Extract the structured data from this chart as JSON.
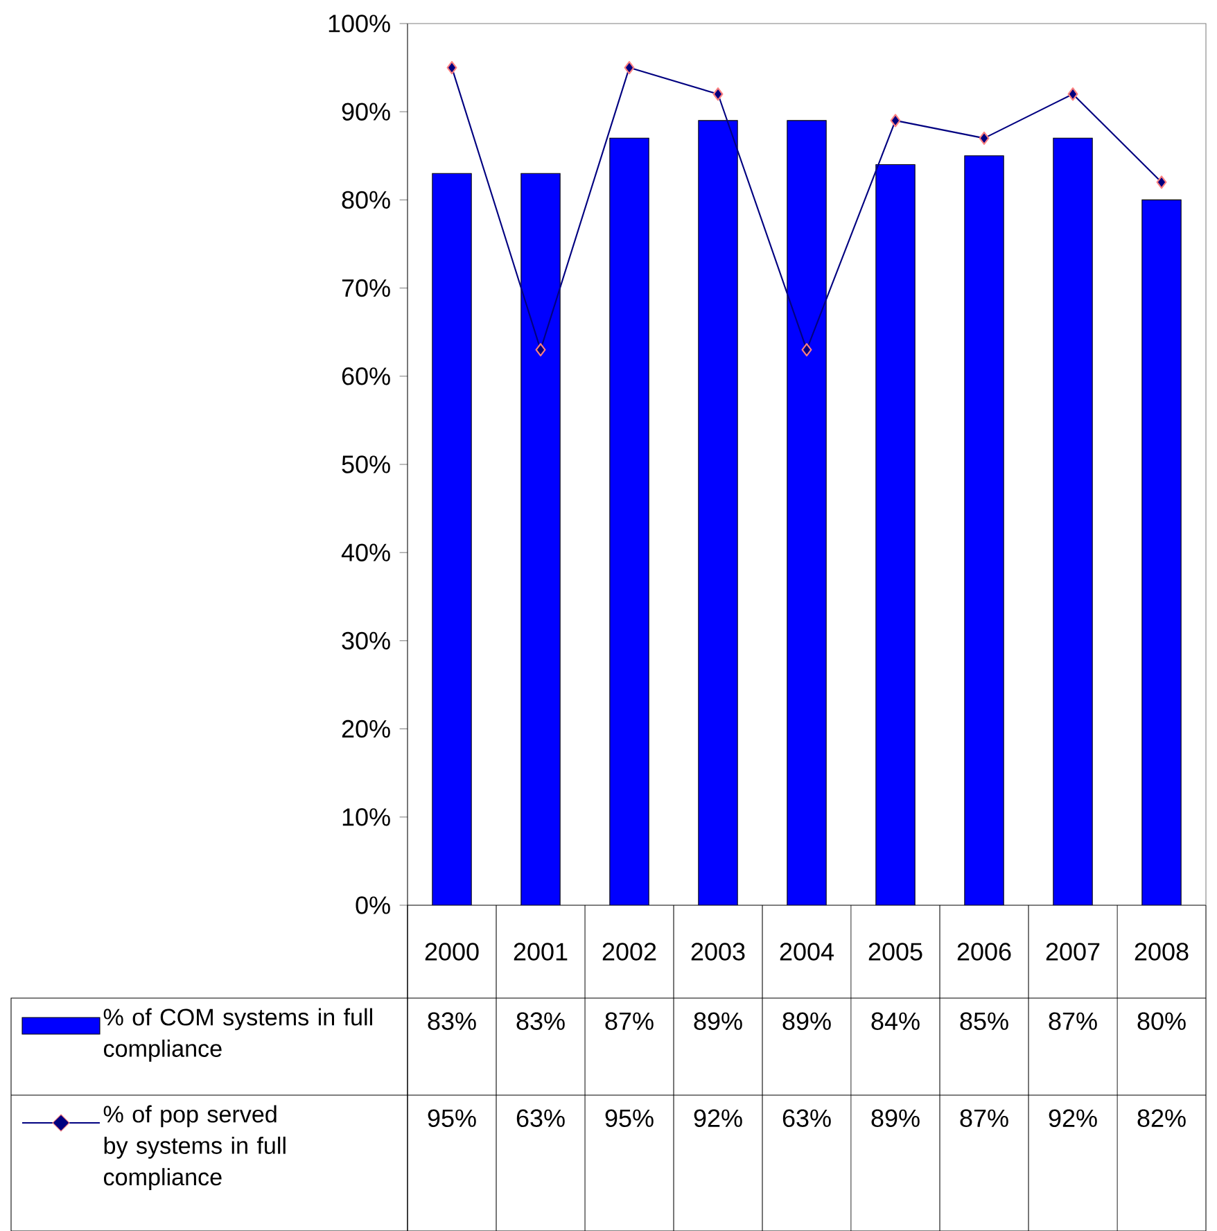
{
  "chart_data": {
    "type": "bar",
    "categories": [
      "2000",
      "2001",
      "2002",
      "2003",
      "2004",
      "2005",
      "2006",
      "2007",
      "2008"
    ],
    "series": [
      {
        "name": "% of COM systems in full compliance",
        "color": "#0000ff",
        "values": [
          83,
          83,
          87,
          89,
          89,
          84,
          85,
          87,
          80
        ],
        "value_labels": [
          "83%",
          "83%",
          "87%",
          "89%",
          "89%",
          "84%",
          "85%",
          "87%",
          "80%"
        ]
      },
      {
        "name": "% of pop served by systems in full compliance",
        "type": "line",
        "color": "#000080",
        "marker": "diamond",
        "values": [
          95,
          63,
          95,
          92,
          63,
          89,
          87,
          92,
          82
        ],
        "value_labels": [
          "95%",
          "63%",
          "95%",
          "92%",
          "63%",
          "89%",
          "87%",
          "92%",
          "82%"
        ]
      }
    ],
    "ylim": [
      0,
      100
    ],
    "yticks": [
      {
        "value": 0,
        "label": "0%"
      },
      {
        "value": 10,
        "label": "10%"
      },
      {
        "value": 20,
        "label": "20%"
      },
      {
        "value": 30,
        "label": "30%"
      },
      {
        "value": 40,
        "label": "40%"
      },
      {
        "value": 50,
        "label": "50%"
      },
      {
        "value": 60,
        "label": "60%"
      },
      {
        "value": 70,
        "label": "70%"
      },
      {
        "value": 80,
        "label": "80%"
      },
      {
        "value": 90,
        "label": "90%"
      },
      {
        "value": 100,
        "label": "100%"
      }
    ],
    "grid": false,
    "legend": "bottom left"
  }
}
